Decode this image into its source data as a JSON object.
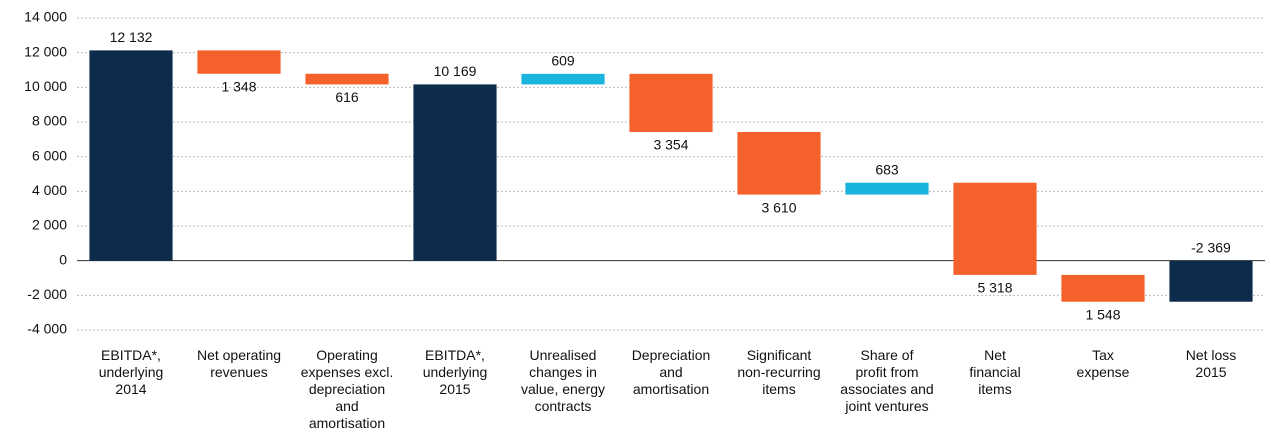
{
  "chart_data": {
    "type": "waterfall",
    "categories": [
      "EBITDA*,\nunderlying\n2014",
      "Net operating\nrevenues",
      "Operating\nexpenses excl.\ndepreciation\nand\namortisation",
      "EBITDA*,\nunderlying\n2015",
      "Unrealised\nchanges in\nvalue, energy\ncontracts",
      "Depreciation\nand\namortisation",
      "Significant\nnon-recurring\nitems",
      "Share of\nprofit from\nassociates and\njoint ventures",
      "Net\nfinancial\nitems",
      "Tax\nexpense",
      "Net loss\n2015"
    ],
    "values": [
      12132,
      -1348,
      -616,
      10169,
      609,
      -3354,
      -3610,
      683,
      -5318,
      -1548,
      -2369
    ],
    "value_labels": [
      "12 132",
      "1 348",
      "616",
      "10 169",
      "609",
      "3 354",
      "3 610",
      "683",
      "5 318",
      "1 548",
      "-2 369"
    ],
    "measure": [
      "total",
      "relative",
      "relative",
      "total",
      "relative",
      "relative",
      "relative",
      "relative",
      "relative",
      "relative",
      "total"
    ],
    "colors": {
      "total": "#0d2b4b",
      "decrease": "#f4612a",
      "increase": "#19b3dc"
    },
    "ylim": [
      -4000,
      14000
    ],
    "yticks": [
      {
        "value": -4000,
        "label": "-4 000"
      },
      {
        "value": -2000,
        "label": "-2 000"
      },
      0,
      {
        "value": 2000,
        "label": "2 000"
      },
      {
        "value": 4000,
        "label": "4 000"
      },
      {
        "value": 6000,
        "label": "6 000"
      },
      {
        "value": 8000,
        "label": "8 000"
      },
      {
        "value": 10000,
        "label": "10 000"
      },
      {
        "value": 12000,
        "label": "12 000"
      },
      {
        "value": 14000,
        "label": "14 000"
      }
    ],
    "grid": true
  }
}
